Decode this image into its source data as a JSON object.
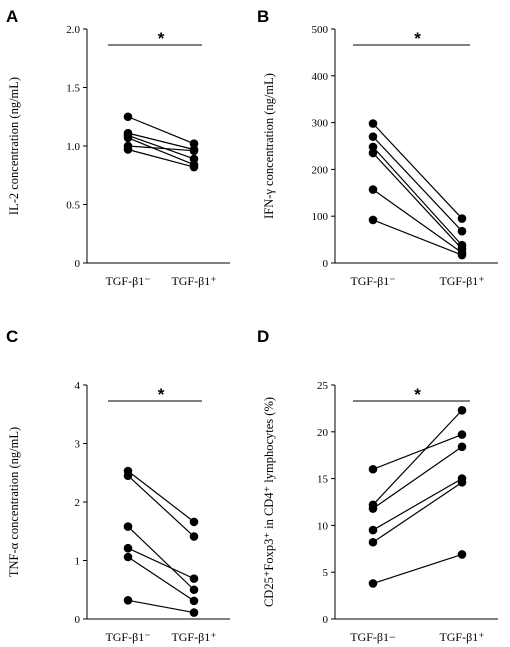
{
  "chart_data": [
    {
      "panel": "A",
      "type": "line",
      "ylabel": "IL-2 concentration (ng/mL)",
      "categories": [
        "TGF-β1⁻",
        "TGF-β1⁺"
      ],
      "yticks": [
        "0",
        "0.5",
        "1.0",
        "1.5",
        "2.0"
      ],
      "ylim": [
        0,
        2.0
      ],
      "series": [
        {
          "values": [
            1.25,
            1.02
          ]
        },
        {
          "values": [
            1.11,
            0.97
          ]
        },
        {
          "values": [
            1.09,
            0.89
          ]
        },
        {
          "values": [
            1.07,
            0.84
          ]
        },
        {
          "values": [
            1.0,
            0.96
          ]
        },
        {
          "values": [
            0.97,
            0.82
          ]
        }
      ],
      "significance": "*"
    },
    {
      "panel": "B",
      "type": "line",
      "ylabel": "IFN-γ concentration (ng/mL)",
      "categories": [
        "TGF-β1⁻",
        "TGF-β1⁺"
      ],
      "yticks": [
        "0",
        "100",
        "200",
        "300",
        "400",
        "500"
      ],
      "ylim": [
        0,
        500
      ],
      "series": [
        {
          "values": [
            298,
            95
          ]
        },
        {
          "values": [
            270,
            68
          ]
        },
        {
          "values": [
            248,
            38
          ]
        },
        {
          "values": [
            235,
            30
          ]
        },
        {
          "values": [
            157,
            22
          ]
        },
        {
          "values": [
            92,
            17
          ]
        }
      ],
      "significance": "*"
    },
    {
      "panel": "C",
      "type": "line",
      "ylabel": "TNF-α concentration (ng/mL)",
      "categories": [
        "TGF-β1⁻",
        "TGF-β1⁺"
      ],
      "yticks": [
        "0",
        "1",
        "2",
        "3",
        "4"
      ],
      "ylim": [
        0,
        4
      ],
      "series": [
        {
          "values": [
            2.53,
            1.66
          ]
        },
        {
          "values": [
            2.45,
            1.41
          ]
        },
        {
          "values": [
            1.58,
            0.5
          ]
        },
        {
          "values": [
            1.21,
            0.69
          ]
        },
        {
          "values": [
            1.06,
            0.31
          ]
        },
        {
          "values": [
            0.32,
            0.11
          ]
        }
      ],
      "significance": "*"
    },
    {
      "panel": "D",
      "type": "line",
      "ylabel": "CD25⁺Foxp3⁺ in CD4⁺ lymphocytes (%)",
      "categories": [
        "TGF-β1−",
        "TGF-β1⁺"
      ],
      "yticks": [
        "0",
        "5",
        "10",
        "15",
        "20",
        "25"
      ],
      "ylim": [
        0,
        25
      ],
      "series": [
        {
          "values": [
            16.0,
            19.7
          ]
        },
        {
          "values": [
            12.2,
            22.3
          ]
        },
        {
          "values": [
            11.8,
            18.4
          ]
        },
        {
          "values": [
            9.5,
            15.0
          ]
        },
        {
          "values": [
            8.2,
            14.6
          ]
        },
        {
          "values": [
            3.8,
            6.9
          ]
        }
      ],
      "significance": "*"
    }
  ]
}
